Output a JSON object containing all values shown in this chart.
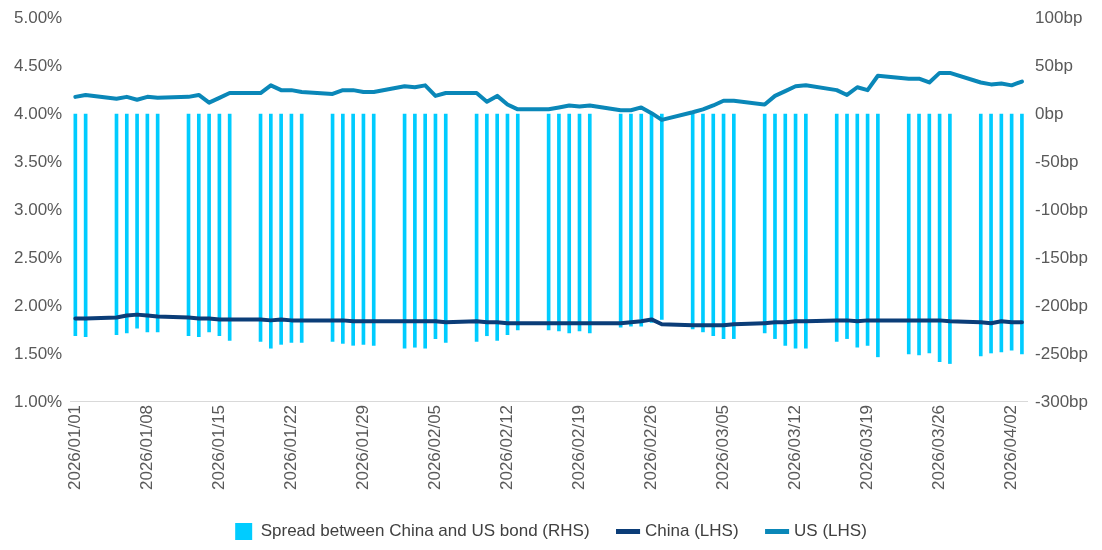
{
  "chart_data": {
    "type": "bar",
    "x": [
      "2026-01-01",
      "2026-01-02",
      "2026-01-05",
      "2026-01-06",
      "2026-01-07",
      "2026-01-08",
      "2026-01-09",
      "2026-01-12",
      "2026-01-13",
      "2026-01-14",
      "2026-01-15",
      "2026-01-16",
      "2026-01-19",
      "2026-01-20",
      "2026-01-21",
      "2026-01-22",
      "2026-01-23",
      "2026-01-26",
      "2026-01-27",
      "2026-01-28",
      "2026-01-29",
      "2026-01-30",
      "2026-02-02",
      "2026-02-03",
      "2026-02-04",
      "2026-02-05",
      "2026-02-06",
      "2026-02-09",
      "2026-02-10",
      "2026-02-11",
      "2026-02-12",
      "2026-02-13",
      "2026-02-16",
      "2026-02-17",
      "2026-02-18",
      "2026-02-19",
      "2026-02-20",
      "2026-02-23",
      "2026-02-24",
      "2026-02-25",
      "2026-02-26",
      "2026-02-27",
      "2026-03-02",
      "2026-03-03",
      "2026-03-04",
      "2026-03-05",
      "2026-03-06",
      "2026-03-09",
      "2026-03-10",
      "2026-03-11",
      "2026-03-12",
      "2026-03-13",
      "2026-03-16",
      "2026-03-17",
      "2026-03-18",
      "2026-03-19",
      "2026-03-20",
      "2026-03-23",
      "2026-03-24",
      "2026-03-25",
      "2026-03-26",
      "2026-03-27",
      "2026-03-30",
      "2026-03-31",
      "2026-04-01",
      "2026-04-02",
      "2026-04-03"
    ],
    "series": [
      {
        "name": "Spread between China and US bond (RHS)",
        "axis": "y2",
        "color": "#00ccff",
        "values": [
          -231,
          -232,
          -230,
          -228,
          -223,
          -227,
          -227,
          -231,
          -232,
          -227,
          -231,
          -236,
          -237,
          -244,
          -240,
          -238,
          -238,
          -237,
          -239,
          -241,
          -240,
          -241,
          -244,
          -243,
          -244,
          -234,
          -238,
          -237,
          -231,
          -236,
          -230,
          -225,
          -225,
          -226,
          -228,
          -226,
          -228,
          -222,
          -221,
          -221,
          -217,
          -214,
          -224,
          -227,
          -231,
          -234,
          -234,
          -228,
          -234,
          -241,
          -244,
          -244,
          -237,
          -234,
          -243,
          -241,
          -253,
          -250,
          -251,
          -249,
          -258,
          -260,
          -252,
          -249,
          -248,
          -246,
          -250
        ]
      },
      {
        "name": "China (LHS)",
        "type": "line",
        "color": "#0b3d78",
        "values": [
          1.87,
          1.87,
          1.88,
          1.9,
          1.91,
          1.9,
          1.89,
          1.88,
          1.87,
          1.87,
          1.86,
          1.86,
          1.86,
          1.85,
          1.86,
          1.85,
          1.85,
          1.85,
          1.85,
          1.84,
          1.84,
          1.84,
          1.84,
          1.84,
          1.84,
          1.84,
          1.83,
          1.84,
          1.83,
          1.83,
          1.82,
          1.82,
          1.82,
          1.82,
          1.82,
          1.82,
          1.82,
          1.82,
          1.83,
          1.84,
          1.86,
          1.81,
          1.8,
          1.8,
          1.8,
          1.8,
          1.81,
          1.82,
          1.83,
          1.83,
          1.84,
          1.84,
          1.85,
          1.85,
          1.84,
          1.85,
          1.85,
          1.85,
          1.85,
          1.85,
          1.85,
          1.84,
          1.83,
          1.82,
          1.84,
          1.83,
          1.83
        ]
      },
      {
        "name": "US (LHS)",
        "type": "line",
        "color": "#0a87b8",
        "values": [
          4.18,
          4.2,
          4.16,
          4.18,
          4.15,
          4.18,
          4.17,
          4.18,
          4.2,
          4.12,
          4.17,
          4.22,
          4.22,
          4.3,
          4.25,
          4.25,
          4.23,
          4.21,
          4.25,
          4.25,
          4.23,
          4.23,
          4.29,
          4.28,
          4.3,
          4.19,
          4.22,
          4.22,
          4.13,
          4.19,
          4.1,
          4.05,
          4.05,
          4.07,
          4.09,
          4.08,
          4.09,
          4.04,
          4.04,
          4.07,
          4.01,
          3.94,
          4.02,
          4.05,
          4.09,
          4.14,
          4.14,
          4.1,
          4.19,
          4.24,
          4.29,
          4.3,
          4.25,
          4.2,
          4.28,
          4.25,
          4.4,
          4.37,
          4.37,
          4.33,
          4.43,
          4.43,
          4.33,
          4.31,
          4.32,
          4.3,
          4.34
        ]
      }
    ],
    "xlim": [
      "2025-12-31T12:00",
      "2026-04-03T12:00"
    ],
    "xticks": [
      {
        "value": "2026-01-01",
        "label": "2026/01/01"
      },
      {
        "value": "2026-01-08",
        "label": "2026/01/08"
      },
      {
        "value": "2026-01-15",
        "label": "2026/01/15"
      },
      {
        "value": "2026-01-22",
        "label": "2026/01/22"
      },
      {
        "value": "2026-01-29",
        "label": "2026/01/29"
      },
      {
        "value": "2026-02-05",
        "label": "2026/02/05"
      },
      {
        "value": "2026-02-12",
        "label": "2026/02/12"
      },
      {
        "value": "2026-02-19",
        "label": "2026/02/19"
      },
      {
        "value": "2026-02-26",
        "label": "2026/02/26"
      },
      {
        "value": "2026-03-05",
        "label": "2026/03/05"
      },
      {
        "value": "2026-03-12",
        "label": "2026/03/12"
      },
      {
        "value": "2026-03-19",
        "label": "2026/03/19"
      },
      {
        "value": "2026-03-26",
        "label": "2026/03/26"
      },
      {
        "value": "2026-04-02",
        "label": "2026/04/02"
      }
    ],
    "ylim": [
      1,
      5
    ],
    "yticks": [
      {
        "value": 1,
        "label": "1.00%"
      },
      {
        "value": 1.5,
        "label": "1.50%"
      },
      {
        "value": 2,
        "label": "2.00%"
      },
      {
        "value": 2.5,
        "label": "2.50%"
      },
      {
        "value": 3,
        "label": "3.00%"
      },
      {
        "value": 3.5,
        "label": "3.50%"
      },
      {
        "value": 4,
        "label": "4.00%"
      },
      {
        "value": 4.5,
        "label": "4.50%"
      },
      {
        "value": 5,
        "label": "5.00%"
      }
    ],
    "y2lim": [
      -300,
      100
    ],
    "y2ticks": [
      {
        "value": -300,
        "label": "-300bp"
      },
      {
        "value": -250,
        "label": "-250bp"
      },
      {
        "value": -200,
        "label": "-200bp"
      },
      {
        "value": -150,
        "label": "-150bp"
      },
      {
        "value": -100,
        "label": "-100bp"
      },
      {
        "value": -50,
        "label": "-50bp"
      },
      {
        "value": 0,
        "label": "0bp"
      },
      {
        "value": 50,
        "label": "50bp"
      },
      {
        "value": 100,
        "label": "100bp"
      }
    ],
    "legend": "bottom",
    "marker": "none"
  }
}
